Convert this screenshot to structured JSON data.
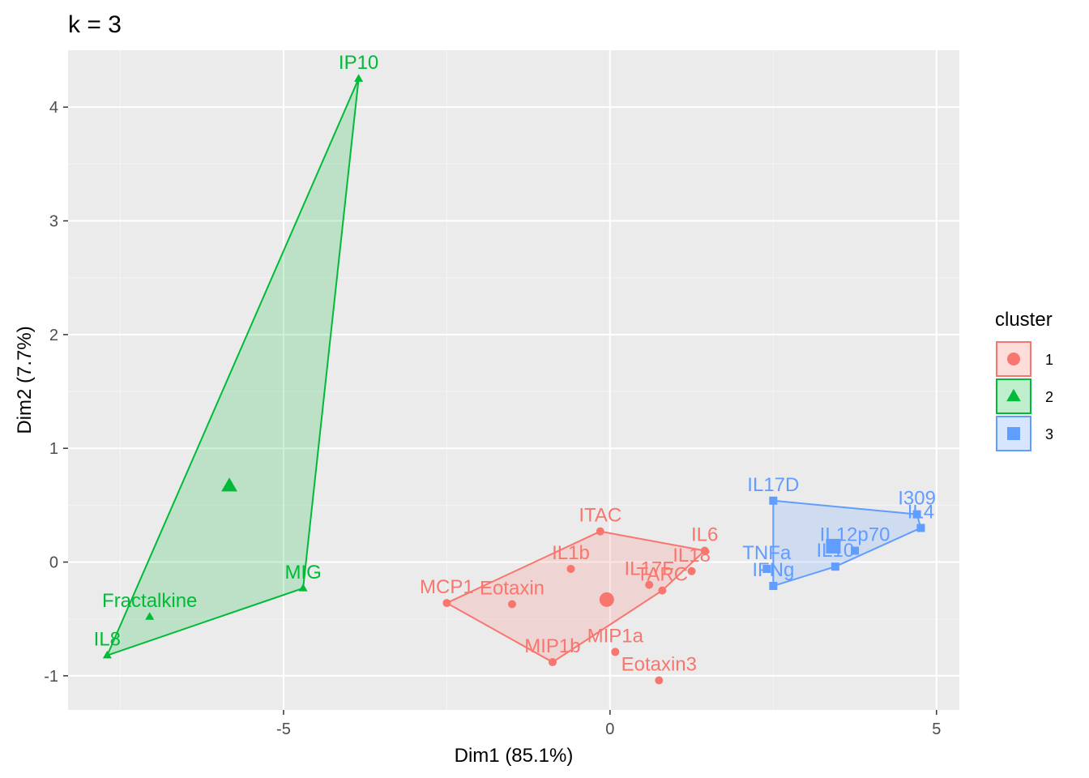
{
  "chart_data": {
    "type": "scatter",
    "title": "k = 3",
    "xlabel": "Dim1 (85.1%)",
    "ylabel": "Dim2 (7.7%)",
    "xlim": [
      -8.3,
      5.35
    ],
    "ylim": [
      -1.3,
      4.5
    ],
    "xticks": [
      -5,
      0,
      5
    ],
    "xtick_labels": [
      "-5",
      "0",
      "5"
    ],
    "yticks": [
      -1,
      0,
      1,
      2,
      3,
      4
    ],
    "ytick_labels": [
      "-1",
      "0",
      "1",
      "2",
      "3",
      "4"
    ],
    "grid": true,
    "legend": {
      "title": "cluster",
      "position": "right"
    },
    "clusters": [
      {
        "name": "1",
        "color": "#F8766D",
        "marker": "circle",
        "hull": [
          "MCP1",
          "ITAC",
          "IL6",
          "TARC",
          "MIP1b"
        ],
        "centroid": {
          "x": -0.05,
          "y": -0.33
        },
        "points": [
          {
            "label": "ITAC",
            "x": -0.15,
            "y": 0.27
          },
          {
            "label": "IL1b",
            "x": -0.6,
            "y": -0.06
          },
          {
            "label": "IL6",
            "x": 1.45,
            "y": 0.1
          },
          {
            "label": "IL17F",
            "x": 0.6,
            "y": -0.2
          },
          {
            "label": "IL18",
            "x": 1.25,
            "y": -0.08
          },
          {
            "label": "TARC",
            "x": 0.8,
            "y": -0.25
          },
          {
            "label": "MCP1",
            "x": -2.5,
            "y": -0.36
          },
          {
            "label": "Eotaxin",
            "x": -1.5,
            "y": -0.37
          },
          {
            "label": "MIP1a",
            "x": 0.08,
            "y": -0.79
          },
          {
            "label": "MIP1b",
            "x": -0.88,
            "y": -0.88
          },
          {
            "label": "Eotaxin3",
            "x": 0.75,
            "y": -1.04
          }
        ]
      },
      {
        "name": "2",
        "color": "#00BA38",
        "marker": "triangle",
        "hull": [
          "IP10",
          "MIG",
          "IL8"
        ],
        "centroid": {
          "x": -5.83,
          "y": 0.67
        },
        "points": [
          {
            "label": "IP10",
            "x": -3.85,
            "y": 4.25
          },
          {
            "label": "MIG",
            "x": -4.7,
            "y": -0.23
          },
          {
            "label": "Fractalkine",
            "x": -7.05,
            "y": -0.48
          },
          {
            "label": "IL8",
            "x": -7.7,
            "y": -0.82
          }
        ]
      },
      {
        "name": "3",
        "color": "#619CFF",
        "marker": "square",
        "hull": [
          "IL17D",
          "I309",
          "IL4",
          "IL10",
          "IFNg"
        ],
        "centroid": {
          "x": 3.42,
          "y": 0.14
        },
        "points": [
          {
            "label": "IL17D",
            "x": 2.5,
            "y": 0.54
          },
          {
            "label": "I309",
            "x": 4.7,
            "y": 0.42
          },
          {
            "label": "IL4",
            "x": 4.76,
            "y": 0.3
          },
          {
            "label": "IL12p70",
            "x": 3.75,
            "y": 0.1
          },
          {
            "label": "IL10",
            "x": 3.45,
            "y": -0.04
          },
          {
            "label": "TNFa",
            "x": 2.4,
            "y": -0.06
          },
          {
            "label": "IFNg",
            "x": 2.5,
            "y": -0.21
          }
        ]
      }
    ]
  }
}
